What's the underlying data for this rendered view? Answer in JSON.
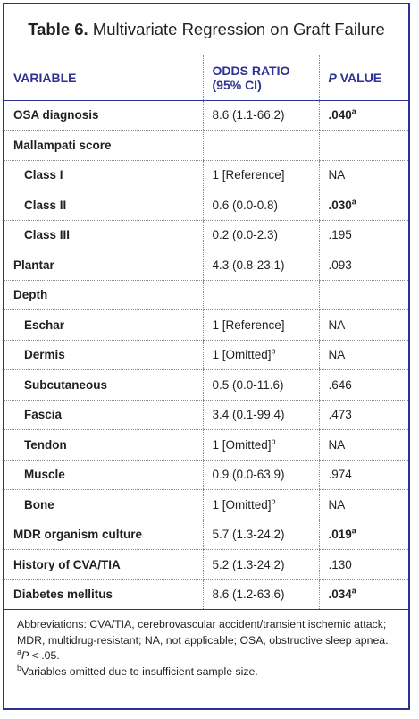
{
  "title": {
    "label": "Table 6.",
    "text": "Multivariate Regression on Graft Failure"
  },
  "headers": {
    "variable": "VARIABLE",
    "odds_ratio_line1": "ODDS RATIO",
    "odds_ratio_line2": "(95% CI)",
    "p_value_italic": "P",
    "p_value_rest": " VALUE"
  },
  "rows": [
    {
      "variable": "OSA diagnosis",
      "indent": false,
      "or": "8.6 (1.1-66.2)",
      "or_sup": "",
      "p": ".040",
      "p_sup": "a",
      "p_bold": true
    },
    {
      "variable": "Mallampati score",
      "indent": false,
      "or": "",
      "or_sup": "",
      "p": "",
      "p_sup": "",
      "p_bold": false
    },
    {
      "variable": "Class I",
      "indent": true,
      "or": "1 [Reference]",
      "or_sup": "",
      "p": "NA",
      "p_sup": "",
      "p_bold": false
    },
    {
      "variable": "Class II",
      "indent": true,
      "or": "0.6 (0.0-0.8)",
      "or_sup": "",
      "p": ".030",
      "p_sup": "a",
      "p_bold": true
    },
    {
      "variable": "Class III",
      "indent": true,
      "or": "0.2 (0.0-2.3)",
      "or_sup": "",
      "p": ".195",
      "p_sup": "",
      "p_bold": false
    },
    {
      "variable": "Plantar",
      "indent": false,
      "or": "4.3 (0.8-23.1)",
      "or_sup": "",
      "p": ".093",
      "p_sup": "",
      "p_bold": false
    },
    {
      "variable": "Depth",
      "indent": false,
      "or": "",
      "or_sup": "",
      "p": "",
      "p_sup": "",
      "p_bold": false
    },
    {
      "variable": "Eschar",
      "indent": true,
      "or": "1 [Reference]",
      "or_sup": "",
      "p": "NA",
      "p_sup": "",
      "p_bold": false
    },
    {
      "variable": "Dermis",
      "indent": true,
      "or": "1 [Omitted]",
      "or_sup": "b",
      "p": "NA",
      "p_sup": "",
      "p_bold": false
    },
    {
      "variable": "Subcutaneous",
      "indent": true,
      "or": "0.5 (0.0-11.6)",
      "or_sup": "",
      "p": ".646",
      "p_sup": "",
      "p_bold": false
    },
    {
      "variable": "Fascia",
      "indent": true,
      "or": "3.4 (0.1-99.4)",
      "or_sup": "",
      "p": ".473",
      "p_sup": "",
      "p_bold": false
    },
    {
      "variable": "Tendon",
      "indent": true,
      "or": "1 [Omitted]",
      "or_sup": "b",
      "p": "NA",
      "p_sup": "",
      "p_bold": false
    },
    {
      "variable": "Muscle",
      "indent": true,
      "or": "0.9 (0.0-63.9)",
      "or_sup": "",
      "p": ".974",
      "p_sup": "",
      "p_bold": false
    },
    {
      "variable": "Bone",
      "indent": true,
      "or": "1 [Omitted]",
      "or_sup": "b",
      "p": "NA",
      "p_sup": "",
      "p_bold": false
    },
    {
      "variable": "MDR organism culture",
      "indent": false,
      "or": "5.7 (1.3-24.2)",
      "or_sup": "",
      "p": ".019",
      "p_sup": "a",
      "p_bold": true
    },
    {
      "variable": "History of CVA/TIA",
      "indent": false,
      "or": "5.2 (1.3-24.2)",
      "or_sup": "",
      "p": ".130",
      "p_sup": "",
      "p_bold": false
    },
    {
      "variable": "Diabetes mellitus",
      "indent": false,
      "or": "8.6 (1.2-63.6)",
      "or_sup": "",
      "p": ".034",
      "p_sup": "a",
      "p_bold": true
    }
  ],
  "footnotes": {
    "abbreviations": "Abbreviations: CVA/TIA, cerebrovascular accident/transient ischemic attack; MDR, multidrug-resistant; NA, not applicable; OSA, obstructive sleep apnea.",
    "a_marker": "a",
    "a_italic": "P",
    "a_text": " < .05.",
    "b_marker": "b",
    "b_text": "Variables omitted due to insufficient sample size."
  }
}
